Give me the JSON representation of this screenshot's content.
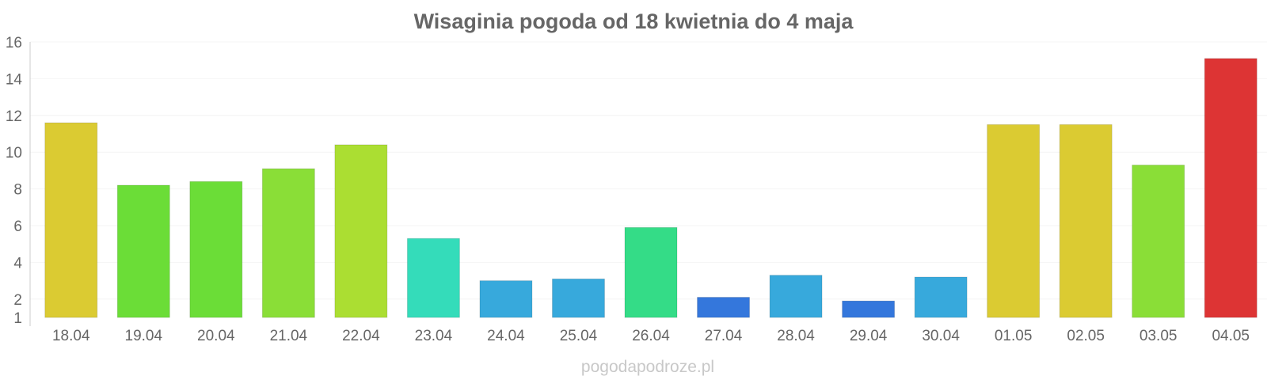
{
  "chart_data": {
    "type": "bar",
    "title": "Wisaginia pogoda od 18 kwietnia do 4 maja",
    "xlabel": "",
    "ylabel": "",
    "ylim": [
      1,
      16
    ],
    "yticks": [
      1,
      2,
      4,
      6,
      8,
      10,
      12,
      14,
      16
    ],
    "grid": true,
    "categories": [
      "18.04",
      "19.04",
      "20.04",
      "21.04",
      "22.04",
      "23.04",
      "24.04",
      "25.04",
      "26.04",
      "27.04",
      "28.04",
      "29.04",
      "30.04",
      "01.05",
      "02.05",
      "03.05",
      "04.05"
    ],
    "values": [
      11.6,
      8.2,
      8.4,
      9.1,
      10.4,
      5.3,
      3.0,
      3.1,
      5.9,
      2.1,
      3.3,
      1.9,
      3.2,
      11.5,
      11.5,
      9.3,
      15.1
    ],
    "colors": [
      "#dbcb32",
      "#6bdd37",
      "#6bdd37",
      "#8ade37",
      "#abde32",
      "#34dcba",
      "#37a9dc",
      "#37a9dc",
      "#34dc87",
      "#3477dc",
      "#37a9dc",
      "#3477dc",
      "#37a9dc",
      "#dbcb32",
      "#dbcb32",
      "#8ade37",
      "#dd3434"
    ]
  },
  "watermark": "pogodapodroze.pl"
}
